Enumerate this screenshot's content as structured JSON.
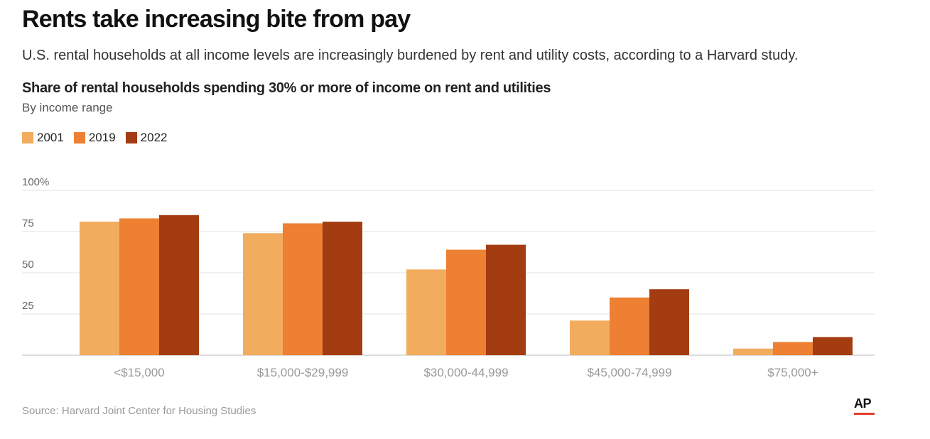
{
  "headline": "Rents take increasing bite from pay",
  "dek": "U.S. rental households at all income levels are increasingly burdened by rent and utility costs, according to a Harvard study.",
  "source": "Source: Harvard Joint Center for Housing Studies",
  "logo_text": "AP",
  "colors": {
    "s2001": "#f2ac5d",
    "s2019": "#ed8033",
    "s2022": "#a33c10",
    "accent": "#e33b2e"
  },
  "chart_data": {
    "type": "bar",
    "title": "Share of rental households spending 30% or more of income on rent and utilities",
    "subtitle": "By income range",
    "categories": [
      "<$15,000",
      "$15,000-$29,999",
      "$30,000-44,999",
      "$45,000-74,999",
      "$75,000+"
    ],
    "series": [
      {
        "name": "2001",
        "color": "#f2ac5d",
        "values": [
          81,
          74,
          52,
          21,
          4
        ]
      },
      {
        "name": "2019",
        "color": "#ed8033",
        "values": [
          83,
          80,
          64,
          35,
          8
        ]
      },
      {
        "name": "2022",
        "color": "#a33c10",
        "values": [
          85,
          81,
          67,
          40,
          11
        ]
      }
    ],
    "yticks": [
      {
        "value": 25,
        "label": "25"
      },
      {
        "value": 50,
        "label": "50"
      },
      {
        "value": 75,
        "label": "75"
      },
      {
        "value": 100,
        "label": "100%"
      }
    ],
    "ylim": [
      0,
      100
    ],
    "grid": true,
    "legend_position": "top-left"
  }
}
